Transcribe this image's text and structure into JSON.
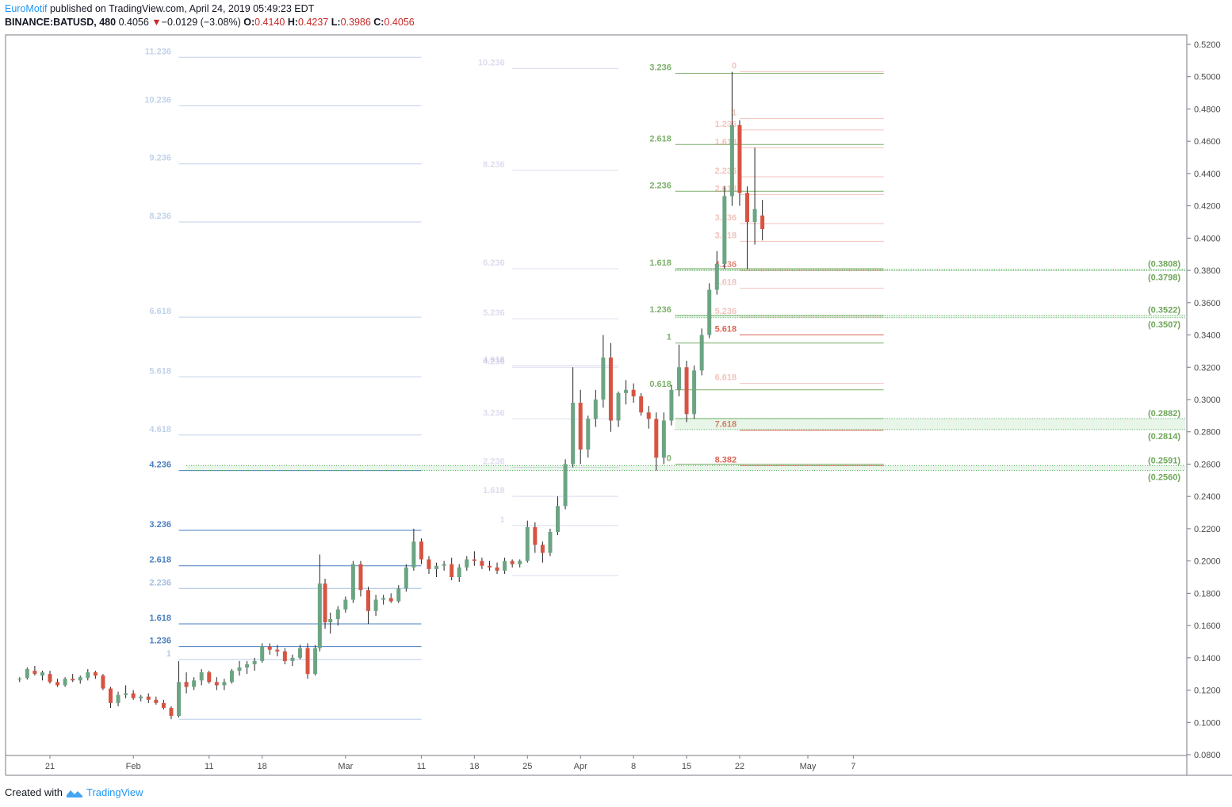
{
  "header": {
    "author": "EuroMotif",
    "published_text": "published on TradingView.com, April 24, 2019 05:49:23 EDT",
    "symbol": "BINANCE:BATUSD, 480",
    "last": "0.4056",
    "change": "−0.0129 (−3.08%)",
    "o_label": "O:",
    "o_value": "0.4140",
    "h_label": "H:",
    "h_value": "0.4237",
    "l_label": "L:",
    "l_value": "0.3986",
    "c_label": "C:",
    "c_value": "0.4056"
  },
  "footer": {
    "created_with": "Created with",
    "brand": "TradingView"
  },
  "colors": {
    "up": "#6ba583",
    "down": "#d75442",
    "grid": "#e0e3eb"
  },
  "chart_data": {
    "type": "candlestick",
    "symbol": "BINANCE:BATUSD",
    "interval": "480",
    "ylim": [
      0.08,
      0.52
    ],
    "y_ticks": [
      "0.5200",
      "0.5000",
      "0.4800",
      "0.4600",
      "0.4400",
      "0.4200",
      "0.4000",
      "0.3800",
      "0.3600",
      "0.3400",
      "0.3200",
      "0.3000",
      "0.2800",
      "0.2600",
      "0.2400",
      "0.2200",
      "0.2000",
      "0.1800",
      "0.1600",
      "0.1400",
      "0.1200",
      "0.1000",
      "0.0800"
    ],
    "x_ticks": [
      {
        "label": "21",
        "day": 0
      },
      {
        "label": "Feb",
        "day": 11
      },
      {
        "label": "11",
        "day": 21
      },
      {
        "label": "18",
        "day": 28
      },
      {
        "label": "Mar",
        "day": 39
      },
      {
        "label": "11",
        "day": 49
      },
      {
        "label": "18",
        "day": 56
      },
      {
        "label": "25",
        "day": 63
      },
      {
        "label": "Apr",
        "day": 70
      },
      {
        "label": "8",
        "day": 77
      },
      {
        "label": "15",
        "day": 84
      },
      {
        "label": "22",
        "day": 91
      },
      {
        "label": "May",
        "day": 100
      },
      {
        "label": "7",
        "day": 106
      }
    ],
    "candles": [
      [
        -4.0,
        0.1266,
        0.128,
        0.125,
        0.127
      ],
      [
        -3.0,
        0.1275,
        0.134,
        0.1265,
        0.133
      ],
      [
        -2.0,
        0.132,
        0.135,
        0.129,
        0.13
      ],
      [
        -1.0,
        0.129,
        0.132,
        0.126,
        0.131
      ],
      [
        0.0,
        0.13,
        0.132,
        0.124,
        0.125
      ],
      [
        1.0,
        0.125,
        0.127,
        0.122,
        0.123
      ],
      [
        2.0,
        0.123,
        0.128,
        0.122,
        0.127
      ],
      [
        3.0,
        0.127,
        0.13,
        0.125,
        0.126
      ],
      [
        4.0,
        0.126,
        0.129,
        0.124,
        0.128
      ],
      [
        5.0,
        0.1275,
        0.133,
        0.126,
        0.131
      ],
      [
        6.0,
        0.131,
        0.132,
        0.127,
        0.129
      ],
      [
        7.0,
        0.129,
        0.13,
        0.12,
        0.121
      ],
      [
        8.0,
        0.121,
        0.122,
        0.109,
        0.112
      ],
      [
        9.0,
        0.112,
        0.119,
        0.11,
        0.117
      ],
      [
        10.0,
        0.117,
        0.123,
        0.115,
        0.118
      ],
      [
        11.0,
        0.118,
        0.12,
        0.114,
        0.115
      ],
      [
        12.0,
        0.115,
        0.117,
        0.113,
        0.116
      ],
      [
        13.0,
        0.116,
        0.118,
        0.112,
        0.114
      ],
      [
        14.0,
        0.114,
        0.116,
        0.111,
        0.112
      ],
      [
        15.0,
        0.112,
        0.114,
        0.108,
        0.109
      ],
      [
        16.0,
        0.109,
        0.11,
        0.102,
        0.104
      ],
      [
        17.0,
        0.104,
        0.138,
        0.103,
        0.125
      ],
      [
        18.0,
        0.125,
        0.131,
        0.118,
        0.122
      ],
      [
        19.0,
        0.122,
        0.128,
        0.12,
        0.126
      ],
      [
        20.0,
        0.126,
        0.133,
        0.123,
        0.131
      ],
      [
        21.0,
        0.131,
        0.132,
        0.124,
        0.125
      ],
      [
        22.0,
        0.125,
        0.128,
        0.12,
        0.123
      ],
      [
        23.0,
        0.123,
        0.127,
        0.12,
        0.125
      ],
      [
        24.0,
        0.125,
        0.133,
        0.124,
        0.132
      ],
      [
        25.0,
        0.132,
        0.138,
        0.129,
        0.134
      ],
      [
        26.0,
        0.134,
        0.138,
        0.13,
        0.136
      ],
      [
        27.0,
        0.136,
        0.14,
        0.132,
        0.138
      ],
      [
        28.0,
        0.138,
        0.149,
        0.137,
        0.147
      ],
      [
        29.0,
        0.147,
        0.149,
        0.142,
        0.145
      ],
      [
        30.0,
        0.145,
        0.148,
        0.141,
        0.144
      ],
      [
        31.0,
        0.144,
        0.146,
        0.136,
        0.138
      ],
      [
        32.0,
        0.138,
        0.142,
        0.135,
        0.14
      ],
      [
        33.0,
        0.14,
        0.148,
        0.139,
        0.146
      ],
      [
        34.0,
        0.146,
        0.149,
        0.127,
        0.13
      ],
      [
        35.0,
        0.13,
        0.148,
        0.129,
        0.146
      ],
      [
        35.6,
        0.146,
        0.204,
        0.144,
        0.186
      ],
      [
        36.3,
        0.186,
        0.189,
        0.158,
        0.162
      ],
      [
        37.0,
        0.162,
        0.168,
        0.155,
        0.164
      ],
      [
        38.0,
        0.164,
        0.172,
        0.16,
        0.17
      ],
      [
        39.0,
        0.17,
        0.178,
        0.168,
        0.176
      ],
      [
        40.0,
        0.176,
        0.2,
        0.174,
        0.198
      ],
      [
        41.0,
        0.198,
        0.2,
        0.178,
        0.182
      ],
      [
        42.0,
        0.182,
        0.184,
        0.161,
        0.169
      ],
      [
        43.0,
        0.169,
        0.179,
        0.166,
        0.176
      ],
      [
        44.0,
        0.176,
        0.179,
        0.173,
        0.177
      ],
      [
        45.0,
        0.177,
        0.18,
        0.174,
        0.175
      ],
      [
        46.0,
        0.175,
        0.185,
        0.174,
        0.183
      ],
      [
        47.0,
        0.183,
        0.198,
        0.181,
        0.196
      ],
      [
        48.0,
        0.196,
        0.22,
        0.194,
        0.212
      ],
      [
        49.0,
        0.212,
        0.214,
        0.198,
        0.201
      ],
      [
        50.0,
        0.201,
        0.203,
        0.192,
        0.195
      ],
      [
        51.0,
        0.195,
        0.199,
        0.19,
        0.197
      ],
      [
        52.0,
        0.197,
        0.2,
        0.194,
        0.198
      ],
      [
        53.0,
        0.198,
        0.202,
        0.188,
        0.19
      ],
      [
        54.0,
        0.19,
        0.198,
        0.187,
        0.196
      ],
      [
        55.0,
        0.196,
        0.203,
        0.194,
        0.201
      ],
      [
        56.0,
        0.201,
        0.206,
        0.197,
        0.2
      ],
      [
        57.0,
        0.2,
        0.202,
        0.195,
        0.197
      ],
      [
        58.0,
        0.197,
        0.2,
        0.194,
        0.196
      ],
      [
        59.0,
        0.196,
        0.199,
        0.192,
        0.194
      ],
      [
        60.0,
        0.194,
        0.202,
        0.192,
        0.2
      ],
      [
        61.0,
        0.2,
        0.201,
        0.196,
        0.198
      ],
      [
        62.0,
        0.198,
        0.201,
        0.196,
        0.2
      ],
      [
        63.0,
        0.2,
        0.225,
        0.199,
        0.221
      ],
      [
        64.0,
        0.221,
        0.224,
        0.205,
        0.21
      ],
      [
        65.0,
        0.21,
        0.212,
        0.199,
        0.205
      ],
      [
        66.0,
        0.205,
        0.22,
        0.203,
        0.218
      ],
      [
        67.0,
        0.218,
        0.24,
        0.216,
        0.234
      ],
      [
        68.0,
        0.234,
        0.263,
        0.232,
        0.26
      ],
      [
        69.0,
        0.26,
        0.32,
        0.258,
        0.298
      ],
      [
        70.0,
        0.298,
        0.306,
        0.26,
        0.269
      ],
      [
        71.0,
        0.269,
        0.29,
        0.264,
        0.288
      ],
      [
        72.0,
        0.288,
        0.306,
        0.283,
        0.3
      ],
      [
        73.0,
        0.3,
        0.34,
        0.295,
        0.326
      ],
      [
        74.0,
        0.326,
        0.335,
        0.28,
        0.287
      ],
      [
        75.0,
        0.287,
        0.305,
        0.283,
        0.304
      ],
      [
        76.0,
        0.304,
        0.312,
        0.297,
        0.306
      ],
      [
        77.0,
        0.306,
        0.31,
        0.298,
        0.302
      ],
      [
        78.0,
        0.302,
        0.304,
        0.29,
        0.292
      ],
      [
        79.0,
        0.292,
        0.296,
        0.282,
        0.288
      ],
      [
        80.0,
        0.288,
        0.292,
        0.256,
        0.264
      ],
      [
        81.0,
        0.264,
        0.292,
        0.26,
        0.287
      ],
      [
        82.0,
        0.287,
        0.309,
        0.284,
        0.306
      ],
      [
        83.0,
        0.306,
        0.334,
        0.302,
        0.32
      ],
      [
        84.0,
        0.32,
        0.324,
        0.286,
        0.291
      ],
      [
        85.0,
        0.291,
        0.321,
        0.288,
        0.318
      ],
      [
        86.0,
        0.318,
        0.344,
        0.315,
        0.34
      ],
      [
        87.0,
        0.34,
        0.372,
        0.338,
        0.368
      ],
      [
        88.0,
        0.368,
        0.392,
        0.365,
        0.384
      ],
      [
        89.0,
        0.384,
        0.432,
        0.381,
        0.426
      ],
      [
        90.0,
        0.426,
        0.503,
        0.42,
        0.47
      ],
      [
        91.0,
        0.47,
        0.473,
        0.42,
        0.428
      ],
      [
        92.0,
        0.428,
        0.432,
        0.381,
        0.41
      ],
      [
        93.0,
        0.41,
        0.456,
        0.396,
        0.418
      ],
      [
        94.0,
        0.414,
        0.4237,
        0.3986,
        0.4056
      ]
    ],
    "fibonacci": [
      {
        "id": "fib-1",
        "day_start": 17.0,
        "day_end": 49.0,
        "label_day": 16.0,
        "color": "#4a7fc1",
        "levels": [
          {
            "ratio": "11.236",
            "value": 0.512,
            "alpha": 0.35
          },
          {
            "ratio": "10.236",
            "value": 0.482,
            "alpha": 0.35
          },
          {
            "ratio": "9.236",
            "value": 0.446,
            "alpha": 0.35
          },
          {
            "ratio": "8.236",
            "value": 0.41,
            "alpha": 0.35
          },
          {
            "ratio": "6.618",
            "value": 0.351,
            "alpha": 0.35
          },
          {
            "ratio": "5.618",
            "value": 0.314,
            "alpha": 0.35
          },
          {
            "ratio": "4.618",
            "value": 0.278,
            "alpha": 0.35
          },
          {
            "ratio": "4.236",
            "value": 0.256,
            "alpha": 1.0
          },
          {
            "ratio": "3.236",
            "value": 0.219,
            "alpha": 1.0
          },
          {
            "ratio": "2.618",
            "value": 0.197,
            "alpha": 1.0
          },
          {
            "ratio": "2.236",
            "value": 0.183,
            "alpha": 0.5
          },
          {
            "ratio": "1.618",
            "value": 0.161,
            "alpha": 1.0
          },
          {
            "ratio": "1.236",
            "value": 0.147,
            "alpha": 1.0
          },
          {
            "ratio": "1",
            "value": 0.139,
            "alpha": 0.4
          },
          {
            "ratio": "",
            "value": 0.102,
            "alpha": 0.4
          }
        ]
      },
      {
        "id": "fib-2",
        "day_start": 61.0,
        "day_end": 75.0,
        "label_day": 60.0,
        "color": "#9a9ad0",
        "levels": [
          {
            "ratio": "10.236",
            "value": 0.505,
            "alpha": 0.35
          },
          {
            "ratio": "8.236",
            "value": 0.442,
            "alpha": 0.35
          },
          {
            "ratio": "6.236",
            "value": 0.381,
            "alpha": 0.35
          },
          {
            "ratio": "5.236",
            "value": 0.35,
            "alpha": 0.35
          },
          {
            "ratio": "4.618",
            "value": 0.321,
            "alpha": 0.35
          },
          {
            "ratio": "4.236",
            "value": 0.32,
            "alpha": 0.35
          },
          {
            "ratio": "3.236",
            "value": 0.288,
            "alpha": 0.35
          },
          {
            "ratio": "2.236",
            "value": 0.258,
            "alpha": 0.35
          },
          {
            "ratio": "1.618",
            "value": 0.24,
            "alpha": 0.35
          },
          {
            "ratio": "1",
            "value": 0.222,
            "alpha": 0.35
          },
          {
            "ratio": "",
            "value": 0.191,
            "alpha": 0.35
          }
        ]
      },
      {
        "id": "fib-3",
        "day_start": 82.5,
        "day_end": 110.0,
        "label_day": 82.0,
        "color": "#6ea65a",
        "levels": [
          {
            "ratio": "3.236",
            "value": 0.502,
            "alpha": 0.9
          },
          {
            "ratio": "2.618",
            "value": 0.458,
            "alpha": 0.9
          },
          {
            "ratio": "2.236",
            "value": 0.429,
            "alpha": 0.9
          },
          {
            "ratio": "1.618",
            "value": 0.381,
            "alpha": 0.9
          },
          {
            "ratio": "1.236",
            "value": 0.352,
            "alpha": 0.9
          },
          {
            "ratio": "1",
            "value": 0.335,
            "alpha": 0.9
          },
          {
            "ratio": "0.618",
            "value": 0.306,
            "alpha": 0.9
          },
          {
            "ratio": "",
            "value": 0.2882,
            "alpha": 0.9
          },
          {
            "ratio": "0",
            "value": 0.26,
            "alpha": 0.9
          }
        ]
      },
      {
        "id": "fib-4",
        "day_start": 91.0,
        "day_end": 110.0,
        "label_day": 90.6,
        "color": "#d75442",
        "levels": [
          {
            "ratio": "0",
            "value": 0.503,
            "alpha": 0.35
          },
          {
            "ratio": "1",
            "value": 0.474,
            "alpha": 0.35
          },
          {
            "ratio": "1.236",
            "value": 0.467,
            "alpha": 0.35
          },
          {
            "ratio": "1.618",
            "value": 0.456,
            "alpha": 0.35
          },
          {
            "ratio": "2.236",
            "value": 0.438,
            "alpha": 0.35
          },
          {
            "ratio": "2.618",
            "value": 0.427,
            "alpha": 0.35
          },
          {
            "ratio": "3.236",
            "value": 0.409,
            "alpha": 0.35
          },
          {
            "ratio": "3.618",
            "value": 0.398,
            "alpha": 0.35
          },
          {
            "ratio": "4.236",
            "value": 0.38,
            "alpha": 0.7
          },
          {
            "ratio": "4.618",
            "value": 0.369,
            "alpha": 0.35
          },
          {
            "ratio": "5.236",
            "value": 0.351,
            "alpha": 0.35
          },
          {
            "ratio": "5.618",
            "value": 0.34,
            "alpha": 0.9
          },
          {
            "ratio": "6.618",
            "value": 0.31,
            "alpha": 0.35
          },
          {
            "ratio": "7.618",
            "value": 0.281,
            "alpha": 0.9
          },
          {
            "ratio": "8.382",
            "value": 0.259,
            "alpha": 0.9
          }
        ]
      }
    ],
    "zones": [
      {
        "label_top": "(0.3808)",
        "label_bottom": "(0.3798)",
        "top": 0.3808,
        "bottom": 0.3798,
        "day_start": 82.5
      },
      {
        "label_top": "(0.3522)",
        "label_bottom": "(0.3507)",
        "top": 0.3522,
        "bottom": 0.3507,
        "day_start": 82.5
      },
      {
        "label_top": "(0.2882)",
        "label_bottom": "(0.2814)",
        "top": 0.2882,
        "bottom": 0.2814,
        "day_start": 82.5
      },
      {
        "label_top": "(0.2591)",
        "label_bottom": "(0.2560)",
        "top": 0.2591,
        "bottom": 0.256,
        "day_start": 18.0
      }
    ]
  }
}
